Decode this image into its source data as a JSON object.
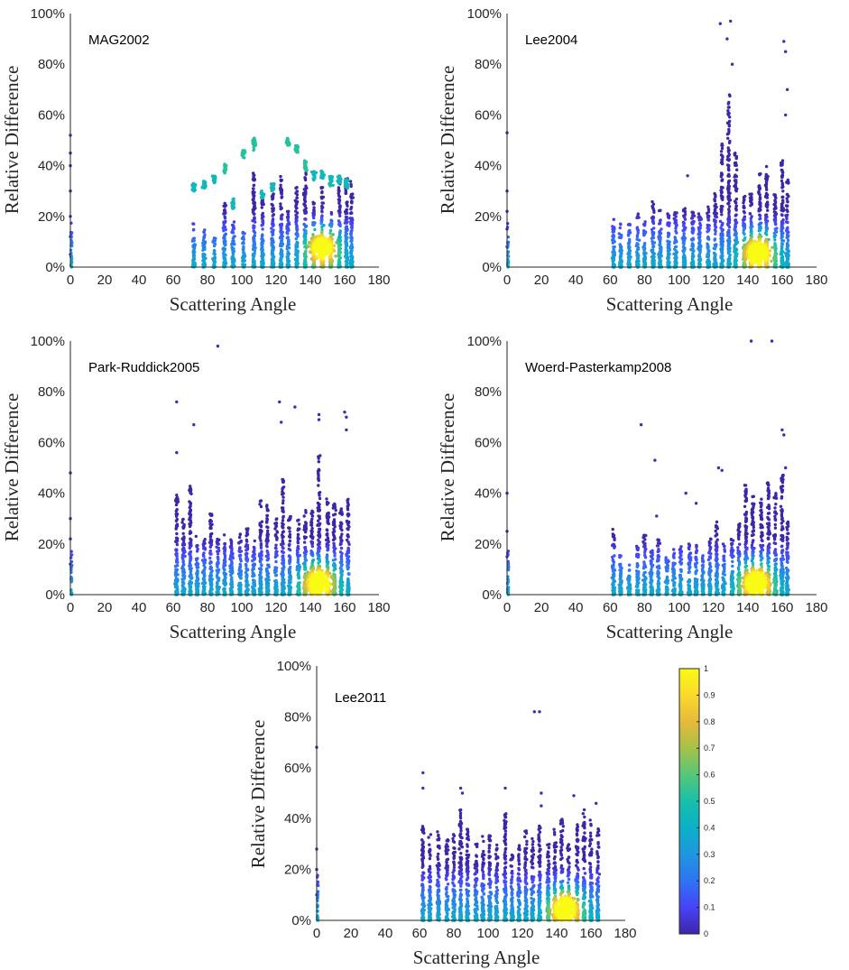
{
  "figure": {
    "x_axis_label": "Scattering Angle",
    "y_axis_label": "Relative Difference",
    "x_ticks": [
      "0",
      "20",
      "40",
      "60",
      "80",
      "100",
      "120",
      "140",
      "160",
      "180"
    ],
    "y_ticks": [
      "0%",
      "20%",
      "40%",
      "60%",
      "80%",
      "100%"
    ],
    "colorbar": {
      "ticks": [
        "0",
        "0.1",
        "0.2",
        "0.3",
        "0.4",
        "0.5",
        "0.6",
        "0.7",
        "0.8",
        "0.9",
        "1"
      ],
      "colormap": [
        "#3e26a8",
        "#4743f8",
        "#2f74f2",
        "#1e97de",
        "#0cb0c8",
        "#18bfa9",
        "#55c779",
        "#a5c24a",
        "#e6ba3a",
        "#fbd82c",
        "#f9fb15"
      ]
    }
  },
  "chart_data": [
    {
      "type": "scatter",
      "title": "MAG2002",
      "xlabel": "Scattering Angle",
      "ylabel": "Relative Difference",
      "xlim": [
        0,
        180
      ],
      "ylim": [
        0,
        100
      ],
      "density_center": [
        147,
        8
      ],
      "outliers": [
        [
          0,
          52
        ],
        [
          0,
          45
        ],
        [
          0,
          40
        ],
        [
          0,
          30
        ],
        [
          0,
          20
        ],
        [
          0,
          12
        ],
        [
          0,
          5
        ]
      ],
      "clusters": [
        {
          "x": 72,
          "ymax": 18,
          "band": [
            30,
            33
          ]
        },
        {
          "x": 78,
          "ymax": 15,
          "band": [
            31,
            34
          ]
        },
        {
          "x": 84,
          "ymax": 12,
          "band": [
            33,
            36
          ]
        },
        {
          "x": 90,
          "ymax": 26,
          "band": [
            37,
            41
          ]
        },
        {
          "x": 95,
          "ymax": 18,
          "band": [
            23,
            27
          ]
        },
        {
          "x": 101,
          "ymax": 14,
          "band": [
            43,
            46
          ]
        },
        {
          "x": 107,
          "ymax": 38,
          "band": [
            46,
            51
          ]
        },
        {
          "x": 112,
          "ymax": 28,
          "band": [
            27,
            30
          ]
        },
        {
          "x": 118,
          "ymax": 31,
          "band": [
            30,
            33
          ]
        },
        {
          "x": 123,
          "ymax": 36
        },
        {
          "x": 127,
          "ymax": 22,
          "band": [
            48,
            51
          ]
        },
        {
          "x": 132,
          "ymax": 34,
          "band": [
            45,
            48
          ]
        },
        {
          "x": 137,
          "ymax": 40,
          "band": [
            38,
            42
          ]
        },
        {
          "x": 142,
          "ymax": 26,
          "band": [
            34,
            38
          ]
        },
        {
          "x": 147,
          "ymax": 32,
          "band": [
            35,
            38
          ]
        },
        {
          "x": 152,
          "ymax": 22,
          "band": [
            32,
            36
          ]
        },
        {
          "x": 157,
          "ymax": 36,
          "band": [
            33,
            36
          ]
        },
        {
          "x": 161,
          "ymax": 35,
          "band": [
            31,
            35
          ]
        },
        {
          "x": 164,
          "ymax": 34
        }
      ]
    },
    {
      "type": "scatter",
      "title": "Lee2004",
      "xlabel": "Scattering Angle",
      "ylabel": "Relative Difference",
      "xlim": [
        0,
        180
      ],
      "ylim": [
        0,
        100
      ],
      "density_center": [
        146,
        6
      ],
      "outliers": [
        [
          0,
          53
        ],
        [
          0,
          30
        ],
        [
          0,
          22
        ],
        [
          0,
          15
        ],
        [
          0,
          8
        ],
        [
          105,
          36
        ],
        [
          124,
          96
        ],
        [
          128,
          90
        ],
        [
          130,
          97
        ],
        [
          131,
          80
        ],
        [
          161,
          89
        ],
        [
          162,
          85
        ],
        [
          163,
          70
        ],
        [
          162,
          60
        ]
      ],
      "clusters": [
        {
          "x": 62,
          "ymax": 19
        },
        {
          "x": 66,
          "ymax": 18
        },
        {
          "x": 71,
          "ymax": 17
        },
        {
          "x": 76,
          "ymax": 21
        },
        {
          "x": 80,
          "ymax": 19
        },
        {
          "x": 85,
          "ymax": 26
        },
        {
          "x": 89,
          "ymax": 23
        },
        {
          "x": 94,
          "ymax": 22
        },
        {
          "x": 98,
          "ymax": 22
        },
        {
          "x": 103,
          "ymax": 24
        },
        {
          "x": 108,
          "ymax": 22
        },
        {
          "x": 112,
          "ymax": 23
        },
        {
          "x": 117,
          "ymax": 24
        },
        {
          "x": 121,
          "ymax": 29
        },
        {
          "x": 125,
          "ymax": 50
        },
        {
          "x": 129,
          "ymax": 68
        },
        {
          "x": 133,
          "ymax": 45
        },
        {
          "x": 138,
          "ymax": 28
        },
        {
          "x": 142,
          "ymax": 30
        },
        {
          "x": 147,
          "ymax": 38
        },
        {
          "x": 151,
          "ymax": 40
        },
        {
          "x": 156,
          "ymax": 30
        },
        {
          "x": 160,
          "ymax": 42
        },
        {
          "x": 163,
          "ymax": 35
        }
      ]
    },
    {
      "type": "scatter",
      "title": "Park-Ruddick2005",
      "xlabel": "Scattering Angle",
      "ylabel": "Relative Difference",
      "xlim": [
        0,
        180
      ],
      "ylim": [
        0,
        100
      ],
      "density_center": [
        145,
        5
      ],
      "outliers": [
        [
          0,
          48
        ],
        [
          0,
          30
        ],
        [
          0,
          22
        ],
        [
          0,
          12
        ],
        [
          62,
          76
        ],
        [
          62,
          56
        ],
        [
          72,
          67
        ],
        [
          86,
          98
        ],
        [
          122,
          76
        ],
        [
          123,
          68
        ],
        [
          131,
          74
        ],
        [
          145,
          71
        ],
        [
          145,
          69
        ],
        [
          160,
          72
        ],
        [
          161,
          70
        ],
        [
          161,
          65
        ]
      ],
      "clusters": [
        {
          "x": 62,
          "ymax": 40
        },
        {
          "x": 66,
          "ymax": 30
        },
        {
          "x": 70,
          "ymax": 44
        },
        {
          "x": 74,
          "ymax": 24
        },
        {
          "x": 78,
          "ymax": 22
        },
        {
          "x": 82,
          "ymax": 32
        },
        {
          "x": 86,
          "ymax": 22
        },
        {
          "x": 90,
          "ymax": 24
        },
        {
          "x": 94,
          "ymax": 22
        },
        {
          "x": 99,
          "ymax": 24
        },
        {
          "x": 103,
          "ymax": 26
        },
        {
          "x": 107,
          "ymax": 22
        },
        {
          "x": 111,
          "ymax": 38
        },
        {
          "x": 115,
          "ymax": 36
        },
        {
          "x": 120,
          "ymax": 30
        },
        {
          "x": 124,
          "ymax": 46
        },
        {
          "x": 128,
          "ymax": 32
        },
        {
          "x": 133,
          "ymax": 30
        },
        {
          "x": 137,
          "ymax": 34
        },
        {
          "x": 141,
          "ymax": 34
        },
        {
          "x": 145,
          "ymax": 55
        },
        {
          "x": 150,
          "ymax": 38
        },
        {
          "x": 154,
          "ymax": 36
        },
        {
          "x": 158,
          "ymax": 34
        },
        {
          "x": 162,
          "ymax": 38
        }
      ]
    },
    {
      "type": "scatter",
      "title": "Woerd-Pasterkamp2008",
      "xlabel": "Scattering Angle",
      "ylabel": "Relative Difference",
      "xlim": [
        0,
        180
      ],
      "ylim": [
        0,
        100
      ],
      "density_center": [
        145,
        5
      ],
      "outliers": [
        [
          0,
          40
        ],
        [
          0,
          25
        ],
        [
          0,
          15
        ],
        [
          78,
          67
        ],
        [
          86,
          53
        ],
        [
          87,
          31
        ],
        [
          104,
          40
        ],
        [
          110,
          36
        ],
        [
          123,
          50
        ],
        [
          125,
          49
        ],
        [
          142,
          100
        ],
        [
          154,
          100
        ],
        [
          160,
          65
        ],
        [
          161,
          63
        ],
        [
          162,
          50
        ]
      ],
      "clusters": [
        {
          "x": 62,
          "ymax": 26
        },
        {
          "x": 66,
          "ymax": 16
        },
        {
          "x": 71,
          "ymax": 12
        },
        {
          "x": 76,
          "ymax": 20
        },
        {
          "x": 80,
          "ymax": 24
        },
        {
          "x": 84,
          "ymax": 18
        },
        {
          "x": 88,
          "ymax": 22
        },
        {
          "x": 93,
          "ymax": 16
        },
        {
          "x": 97,
          "ymax": 18
        },
        {
          "x": 101,
          "ymax": 20
        },
        {
          "x": 106,
          "ymax": 20
        },
        {
          "x": 110,
          "ymax": 20
        },
        {
          "x": 114,
          "ymax": 16
        },
        {
          "x": 118,
          "ymax": 22
        },
        {
          "x": 122,
          "ymax": 30
        },
        {
          "x": 126,
          "ymax": 20
        },
        {
          "x": 131,
          "ymax": 22
        },
        {
          "x": 135,
          "ymax": 28
        },
        {
          "x": 139,
          "ymax": 45
        },
        {
          "x": 143,
          "ymax": 40
        },
        {
          "x": 148,
          "ymax": 38
        },
        {
          "x": 152,
          "ymax": 45
        },
        {
          "x": 156,
          "ymax": 40
        },
        {
          "x": 160,
          "ymax": 48
        },
        {
          "x": 163,
          "ymax": 30
        }
      ]
    },
    {
      "type": "scatter",
      "title": "Lee2011",
      "xlabel": "Scattering Angle",
      "ylabel": "Relative Difference",
      "xlim": [
        0,
        180
      ],
      "ylim": [
        0,
        100
      ],
      "density_center": [
        145,
        5
      ],
      "outliers": [
        [
          0,
          68
        ],
        [
          0,
          28
        ],
        [
          0,
          20
        ],
        [
          0,
          10
        ],
        [
          62,
          58
        ],
        [
          62,
          52
        ],
        [
          84,
          52
        ],
        [
          85,
          50
        ],
        [
          110,
          52
        ],
        [
          127,
          82
        ],
        [
          130,
          82
        ],
        [
          131,
          50
        ],
        [
          131,
          45
        ],
        [
          150,
          49
        ],
        [
          163,
          46
        ]
      ],
      "clusters": [
        {
          "x": 62,
          "ymax": 38
        },
        {
          "x": 66,
          "ymax": 34
        },
        {
          "x": 71,
          "ymax": 35
        },
        {
          "x": 76,
          "ymax": 32
        },
        {
          "x": 80,
          "ymax": 34
        },
        {
          "x": 84,
          "ymax": 44
        },
        {
          "x": 88,
          "ymax": 36
        },
        {
          "x": 93,
          "ymax": 30
        },
        {
          "x": 97,
          "ymax": 34
        },
        {
          "x": 101,
          "ymax": 34
        },
        {
          "x": 105,
          "ymax": 30
        },
        {
          "x": 110,
          "ymax": 42
        },
        {
          "x": 114,
          "ymax": 26
        },
        {
          "x": 118,
          "ymax": 30
        },
        {
          "x": 122,
          "ymax": 36
        },
        {
          "x": 126,
          "ymax": 34
        },
        {
          "x": 130,
          "ymax": 38
        },
        {
          "x": 135,
          "ymax": 30
        },
        {
          "x": 139,
          "ymax": 36
        },
        {
          "x": 143,
          "ymax": 40
        },
        {
          "x": 147,
          "ymax": 30
        },
        {
          "x": 152,
          "ymax": 38
        },
        {
          "x": 156,
          "ymax": 44
        },
        {
          "x": 160,
          "ymax": 40
        },
        {
          "x": 164,
          "ymax": 36
        }
      ]
    }
  ]
}
